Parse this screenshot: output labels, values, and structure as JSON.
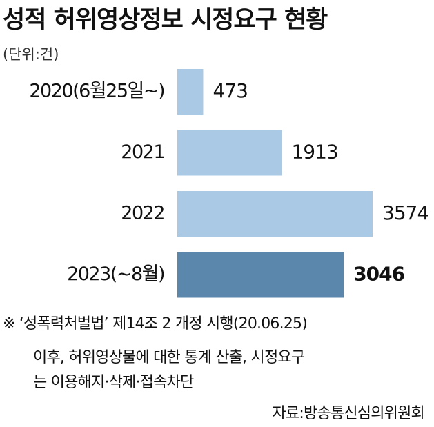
{
  "chart_data": {
    "type": "hbar",
    "title": "성적 허위영상정보 시정요구 현황",
    "unit": "(단위:건)",
    "categories": [
      "2020(6월25일~)",
      "2021",
      "2022",
      "2023(~8월)"
    ],
    "values": [
      473,
      1913,
      3574,
      3046
    ],
    "colors": [
      "#a9c9e4",
      "#a9c9e4",
      "#a9c9e4",
      "#5a87ab"
    ],
    "notes": [
      "※ ‘성폭력처벌법’ 제14조 2 개정 시행(20.06.25)",
      "이후, 허위영상물에 대한 통계 산출, 시정요구",
      "는 이용해지·삭제·접속차단"
    ],
    "source": "자료:방송통신심의위원회"
  }
}
